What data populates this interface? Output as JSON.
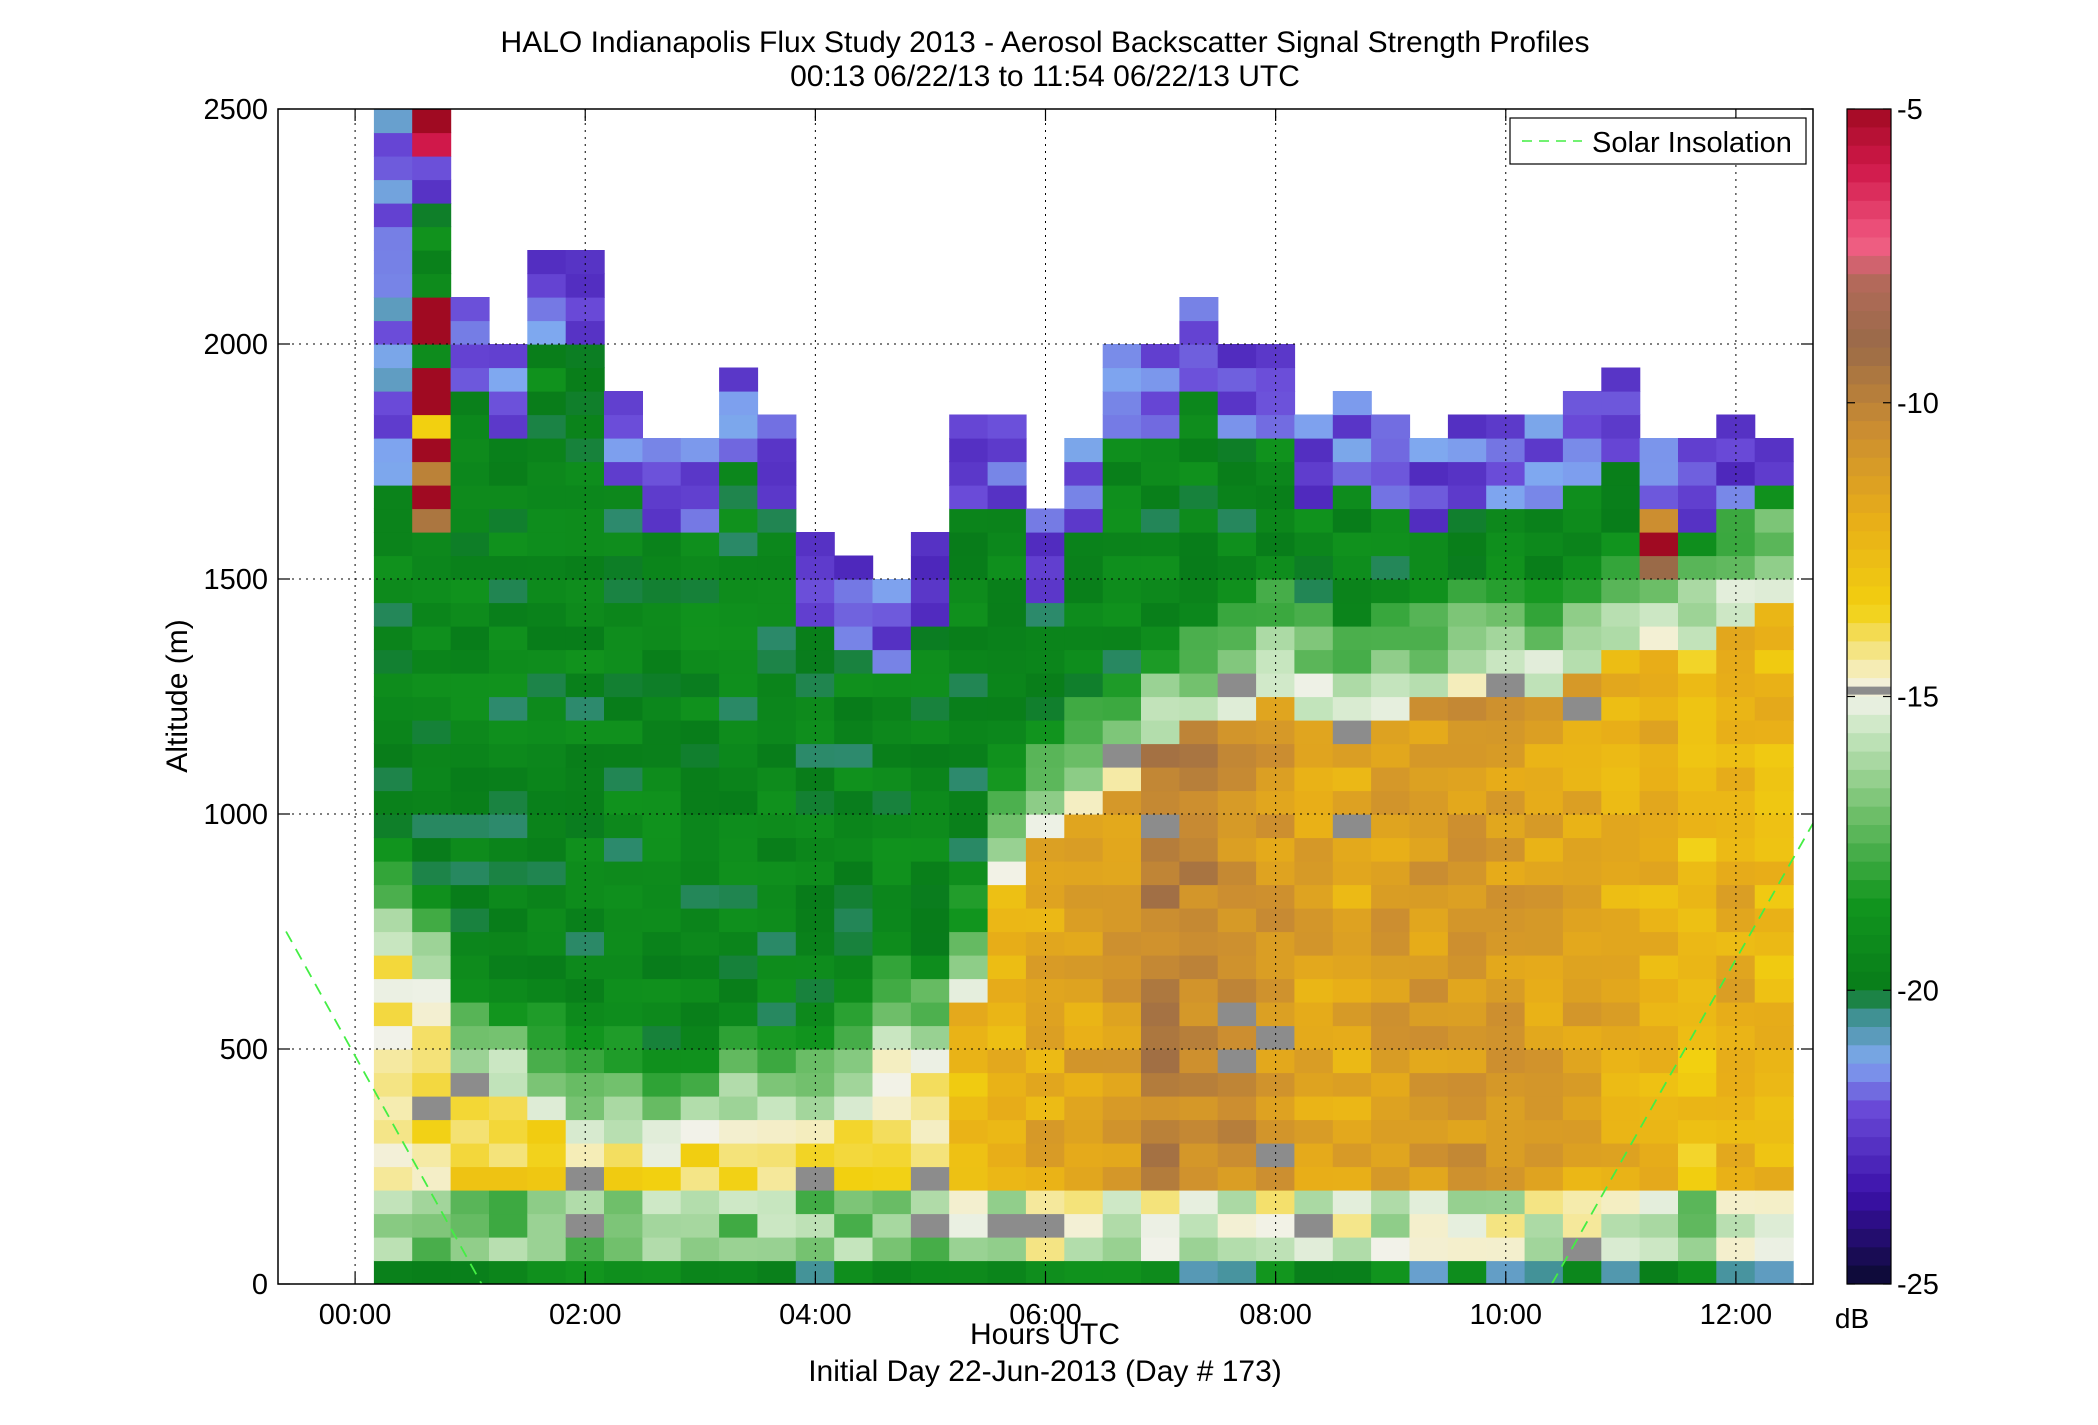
{
  "chart_data": {
    "type": "heatmap",
    "title": "HALO Indianapolis Flux Study 2013 - Aerosol Backscatter Signal Strength Profiles",
    "subtitle": "00:13 06/22/13 to 11:54 06/22/13  UTC",
    "xlabel": "Hours UTC",
    "xlabel2": "Initial Day 22-Jun-2013 (Day # 173)",
    "ylabel": "Altitude (m)",
    "xlim": [
      -0.67,
      12.67
    ],
    "ylim": [
      0,
      2500
    ],
    "x_ticks": [
      0,
      2,
      4,
      6,
      8,
      10,
      12
    ],
    "x_tick_labels": [
      "00:00",
      "02:00",
      "04:00",
      "06:00",
      "08:00",
      "10:00",
      "12:00"
    ],
    "y_ticks": [
      0,
      500,
      1000,
      1500,
      2000,
      2500
    ],
    "y_tick_labels": [
      "0",
      "500",
      "1000",
      "1500",
      "2000",
      "2500"
    ],
    "grid": true,
    "colorbar": {
      "min": -25,
      "max": -5,
      "unit": "dB",
      "ticks": [
        -5,
        -10,
        -15,
        -20,
        -25
      ],
      "tick_labels": [
        "-5",
        "-10",
        "-15",
        "-20",
        "-25"
      ],
      "stops": [
        {
          "v": -25,
          "c": "#0a0a2e"
        },
        {
          "v": -23.5,
          "c": "#3a10a8"
        },
        {
          "v": -22,
          "c": "#6a4ad8"
        },
        {
          "v": -21.2,
          "c": "#7fa8f0"
        },
        {
          "v": -20.4,
          "c": "#3a8f8a"
        },
        {
          "v": -20,
          "c": "#087c1a"
        },
        {
          "v": -18.5,
          "c": "#12961e"
        },
        {
          "v": -17,
          "c": "#6fbf6a"
        },
        {
          "v": -15.6,
          "c": "#c8e6c0"
        },
        {
          "v": -15,
          "c": "#f2f2ea"
        },
        {
          "v": -14.5,
          "c": "#f5ecb0"
        },
        {
          "v": -13.5,
          "c": "#f2d010"
        },
        {
          "v": -12,
          "c": "#e8ae18"
        },
        {
          "v": -10.5,
          "c": "#cc8e30"
        },
        {
          "v": -9,
          "c": "#9a6a48"
        },
        {
          "v": -8,
          "c": "#b06a58"
        },
        {
          "v": -7.3,
          "c": "#f25c84"
        },
        {
          "v": -6,
          "c": "#d0184a"
        },
        {
          "v": -5,
          "c": "#a00a22"
        }
      ],
      "marker_value": -14.9,
      "marker_color": "#8c8c8c"
    },
    "series": [
      {
        "name": "Solar Insolation",
        "style": "dashed",
        "color": "#44ee44",
        "segments": [
          [
            [
              -0.6,
              750
            ],
            [
              1.1,
              0
            ]
          ],
          [
            [
              10.4,
              0
            ],
            [
              12.67,
              980
            ]
          ]
        ]
      }
    ],
    "legend": {
      "placement": "top-right"
    },
    "grid_data": {
      "cell_minutes": 20,
      "first_column_time": 0.33,
      "cell_height_m": 50,
      "first_row_center_m": 50,
      "start_top": [
        2500,
        2500,
        2100,
        2000,
        2200,
        2200,
        1900,
        1800,
        1800,
        1950,
        1850,
        1600,
        1550,
        1500,
        1600,
        1850,
        1850,
        1650,
        1800,
        2000,
        2000,
        2100,
        2000,
        2000,
        1850,
        1900,
        1850,
        1800,
        1850,
        1850,
        1850,
        1900,
        1950,
        1800,
        1800,
        1850,
        1800
      ],
      "profile_top_value": -22,
      "profile_ml_height": [
        720,
        650,
        450,
        420,
        360,
        320,
        330,
        300,
        310,
        350,
        330,
        350,
        400,
        500,
        480,
        620,
        900,
        1000,
        1050,
        1100,
        1180,
        1220,
        1250,
        1300,
        1250,
        1200,
        1250,
        1260,
        1300,
        1320,
        1300,
        1320,
        1380,
        1400,
        1400,
        1450,
        1500
      ],
      "profile_ml_value": [
        -14.5,
        -14,
        -13.6,
        -13.5,
        -13.6,
        -13.8,
        -14,
        -14.2,
        -14.1,
        -13.6,
        -13.9,
        -14.2,
        -14.2,
        -14.2,
        -14.2,
        -12.5,
        -12.2,
        -11.8,
        -11.6,
        -11,
        -10,
        -10.2,
        -10.5,
        -11,
        -11.6,
        -11.8,
        -11.3,
        -11.2,
        -11,
        -11.2,
        -11.5,
        -11.6,
        -12,
        -12.2,
        -13,
        -12,
        -12.5
      ],
      "special_cells": [
        [
          1,
          2450,
          -6
        ],
        [
          1,
          2500,
          -5
        ],
        [
          1,
          1800,
          -5
        ],
        [
          1,
          1700,
          -5
        ],
        [
          1,
          2100,
          -5
        ],
        [
          1,
          2050,
          -5
        ],
        [
          1,
          1950,
          -5
        ],
        [
          1,
          1900,
          -5
        ],
        [
          1,
          1850,
          -13.5
        ],
        [
          1,
          1750,
          -10
        ],
        [
          1,
          1650,
          -9.5
        ],
        [
          33,
          1600,
          -5
        ],
        [
          33,
          1650,
          -10.5
        ],
        [
          33,
          1550,
          -9
        ]
      ]
    }
  }
}
